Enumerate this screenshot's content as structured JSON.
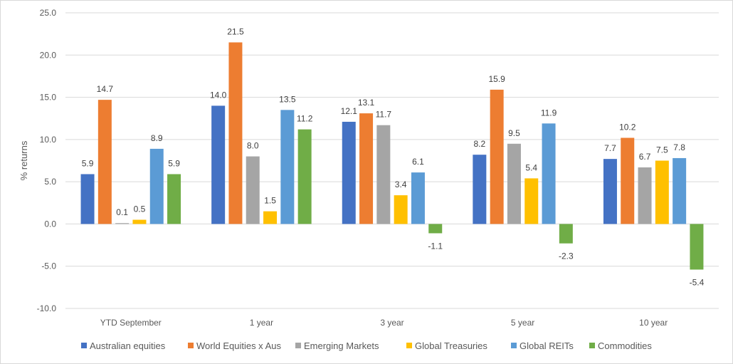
{
  "chart_data": {
    "type": "bar",
    "title": "",
    "xlabel": "",
    "ylabel": "% returns",
    "ylim": [
      -10,
      25
    ],
    "yticks": [
      25.0,
      20.0,
      15.0,
      10.0,
      5.0,
      0.0,
      -5.0,
      -10.0
    ],
    "ytick_labels": [
      "25.0",
      "20.0",
      "15.0",
      "10.0",
      "5.0",
      "0.0",
      "-5.0",
      "-10.0"
    ],
    "grid": true,
    "legend_position": "bottom",
    "categories": [
      "YTD September",
      "1 year",
      "3 year",
      "5 year",
      "10 year"
    ],
    "series": [
      {
        "name": "Australian equities",
        "color": "#4472c4",
        "values": [
          5.9,
          14.0,
          12.1,
          8.2,
          7.7
        ],
        "labels": [
          "5.9",
          "14.0",
          "12.1",
          "8.2",
          "7.7"
        ]
      },
      {
        "name": "World Equities x Aus",
        "color": "#ed7d31",
        "values": [
          14.7,
          21.5,
          13.1,
          15.9,
          10.2
        ],
        "labels": [
          "14.7",
          "21.5",
          "13.1",
          "15.9",
          "10.2"
        ]
      },
      {
        "name": "Emerging Markets",
        "color": "#a5a5a5",
        "values": [
          0.1,
          8.0,
          11.7,
          9.5,
          6.7
        ],
        "labels": [
          "0.1",
          "8.0",
          "11.7",
          "9.5",
          "6.7"
        ]
      },
      {
        "name": "Global Treasuries",
        "color": "#ffc000",
        "values": [
          0.5,
          1.5,
          3.4,
          5.4,
          7.5
        ],
        "labels": [
          "0.5",
          "1.5",
          "3.4",
          "5.4",
          "7.5"
        ]
      },
      {
        "name": "Global REITs",
        "color": "#5b9bd5",
        "values": [
          8.9,
          13.5,
          6.1,
          11.9,
          7.8
        ],
        "labels": [
          "8.9",
          "13.5",
          "6.1",
          "11.9",
          "7.8"
        ]
      },
      {
        "name": "Commodities",
        "color": "#70ad47",
        "values": [
          5.9,
          11.2,
          -1.1,
          -2.3,
          -5.4
        ],
        "labels": [
          "5.9",
          "11.2",
          "-1.1",
          "-2.3",
          "-5.4"
        ]
      }
    ]
  }
}
